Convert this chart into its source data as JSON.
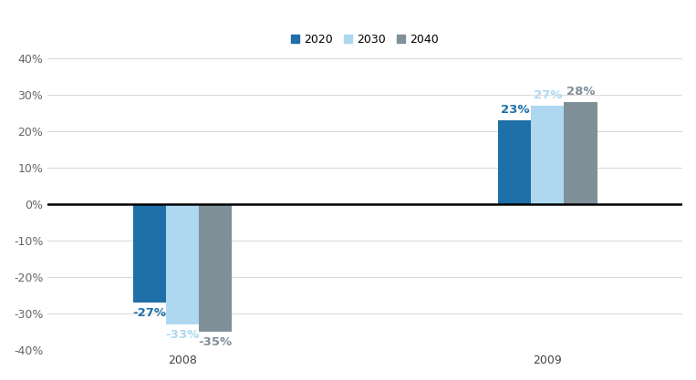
{
  "groups": [
    "2008",
    "2009"
  ],
  "series": [
    {
      "label": "2020",
      "color": "#1F6FA8",
      "values": [
        -27,
        23
      ]
    },
    {
      "label": "2030",
      "color": "#ADD8F0",
      "values": [
        -33,
        27
      ]
    },
    {
      "label": "2040",
      "color": "#7F9099",
      "values": [
        -35,
        28
      ]
    }
  ],
  "bar_labels": [
    [
      "-27%",
      "-33%",
      "-35%"
    ],
    [
      "23%",
      "27%",
      "28%"
    ]
  ],
  "label_colors_2008": [
    "#1F6FA8",
    "#ADD8F0",
    "#7F9099"
  ],
  "label_colors_2009": [
    "#1F6FA8",
    "#ADD8F0",
    "#7F9099"
  ],
  "ylim": [
    -40,
    40
  ],
  "yticks": [
    -40,
    -30,
    -20,
    -10,
    0,
    10,
    20,
    30,
    40
  ],
  "ytick_labels": [
    "-40%",
    "-30%",
    "-20%",
    "-10%",
    "0%",
    "10%",
    "20%",
    "30%",
    "40%"
  ],
  "background_color": "#FFFFFF",
  "grid_color": "#D8D8D8",
  "bar_width": 0.135,
  "group_centers": [
    1.0,
    2.5
  ],
  "legend_fontsize": 9,
  "tick_fontsize": 9,
  "bar_label_fontsize": 9.5
}
